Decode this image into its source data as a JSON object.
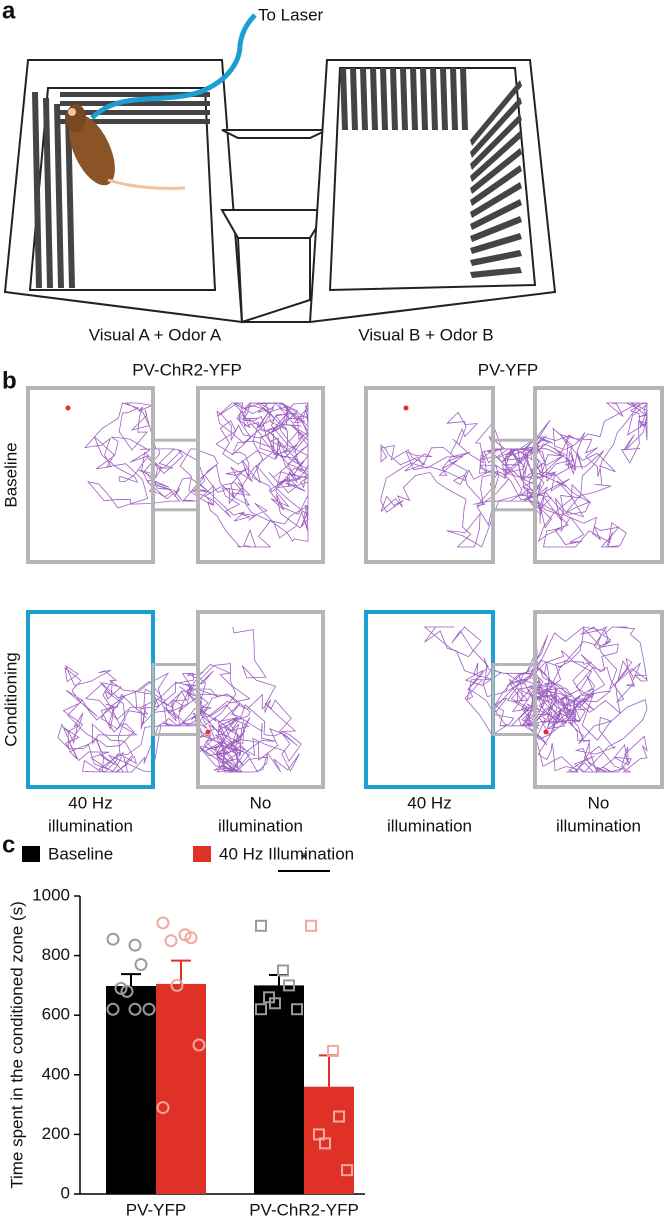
{
  "panel_a": {
    "label": "a",
    "laser_label": "To Laser",
    "left_label": "Visual A + Odor A",
    "right_label": "Visual B + Odor B"
  },
  "panel_b": {
    "label": "b",
    "columns": [
      "PV-ChR2-YFP",
      "PV-YFP"
    ],
    "rows": [
      "Baseline",
      "Conditioning"
    ],
    "zone_labels": [
      [
        "40 Hz",
        "illumination"
      ],
      [
        "No",
        "illumination"
      ],
      [
        "40 Hz",
        "illumination"
      ],
      [
        "No",
        "illumination"
      ]
    ]
  },
  "chart_data": {
    "type": "bar",
    "panel_label": "c",
    "y_label": "Time spent in the conditioned zone (s)",
    "categories": [
      "PV-YFP",
      "PV-ChR2-YFP"
    ],
    "markers": [
      "circle",
      "square"
    ],
    "series": [
      {
        "name": "Baseline",
        "color": "#000000",
        "point_color": "#9a9a9a",
        "values": [
          698,
          700
        ],
        "errors": [
          40,
          35
        ],
        "points": [
          [
            855,
            835,
            770,
            690,
            680,
            620,
            620,
            620
          ],
          [
            900,
            750,
            700,
            660,
            640,
            620,
            620
          ]
        ]
      },
      {
        "name": "40 Hz Illumination",
        "color": "#e03127",
        "point_color": "#f2a7a1",
        "values": [
          705,
          360
        ],
        "errors": [
          78,
          105
        ],
        "points": [
          [
            910,
            870,
            860,
            850,
            700,
            500,
            290
          ],
          [
            900,
            480,
            260,
            200,
            170,
            80
          ]
        ]
      }
    ],
    "ylim": [
      0,
      1000
    ],
    "yticks": [
      0,
      200,
      400,
      600,
      800,
      1000
    ],
    "significance": {
      "label": "*",
      "category": 1
    }
  }
}
